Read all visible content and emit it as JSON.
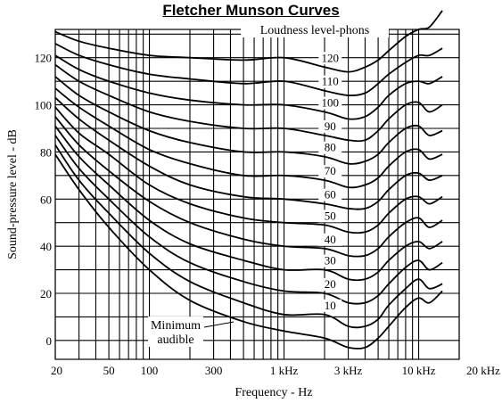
{
  "chart_data": {
    "type": "line",
    "title": "Fletcher Munson Curves",
    "xlabel": "Frequency - Hz",
    "ylabel": "Sound-pressure level - dB",
    "legend_title": "Loudness level-phons",
    "annotation": "Minimum audible",
    "xscale": "log",
    "xlim": [
      20,
      20000
    ],
    "ylim": [
      -8,
      132
    ],
    "grid": true,
    "x_ticks": [
      {
        "value": 20,
        "label": "20"
      },
      {
        "value": 50,
        "label": "50"
      },
      {
        "value": 100,
        "label": "100"
      },
      {
        "value": 300,
        "label": "300"
      },
      {
        "value": 1000,
        "label": "1 kHz"
      },
      {
        "value": 3000,
        "label": "3 kHz"
      },
      {
        "value": 10000,
        "label": "10 kHz"
      },
      {
        "value": 20000,
        "label": "20 kHz"
      }
    ],
    "y_ticks": [
      0,
      20,
      40,
      60,
      80,
      100,
      120
    ],
    "x_gridlines": [
      20,
      30,
      40,
      50,
      60,
      70,
      80,
      90,
      100,
      200,
      300,
      400,
      500,
      600,
      700,
      800,
      900,
      1000,
      2000,
      3000,
      4000,
      5000,
      6000,
      7000,
      8000,
      9000,
      10000,
      20000
    ],
    "y_gridlines": [
      0,
      10,
      20,
      30,
      40,
      50,
      60,
      70,
      80,
      90,
      100,
      110,
      120,
      130
    ],
    "x": [
      20,
      30,
      50,
      100,
      200,
      500,
      1000,
      2000,
      3000,
      4000,
      5000,
      6000,
      8000,
      10000,
      12000,
      15000
    ],
    "series": [
      {
        "name": "120",
        "values": [
          131,
          127,
          124,
          121,
          120,
          119,
          120,
          116,
          114,
          116,
          119,
          123,
          129,
          132,
          133,
          140
        ]
      },
      {
        "name": "110",
        "values": [
          126,
          121,
          117,
          113,
          111,
          109,
          110,
          106,
          104,
          105,
          109,
          113,
          118,
          121,
          121,
          124
        ]
      },
      {
        "name": "100",
        "values": [
          121,
          115,
          110,
          105,
          102,
          100,
          100,
          97,
          94,
          95,
          99,
          104,
          109,
          110,
          109,
          112
        ]
      },
      {
        "name": "90",
        "values": [
          117,
          110,
          104,
          97,
          93,
          90,
          90,
          87,
          85,
          85,
          89,
          94,
          100,
          101,
          97,
          100
        ]
      },
      {
        "name": "80",
        "values": [
          112,
          104,
          97,
          89,
          84,
          80,
          80,
          78,
          75,
          76,
          79,
          84,
          90,
          91,
          87,
          89
        ]
      },
      {
        "name": "70",
        "values": [
          107,
          99,
          91,
          81,
          75,
          70,
          70,
          68,
          65,
          66,
          69,
          74,
          80,
          81,
          77,
          79
        ]
      },
      {
        "name": "60",
        "values": [
          103,
          94,
          85,
          74,
          66,
          61,
          60,
          58,
          56,
          56,
          59,
          64,
          70,
          71,
          68,
          70
        ]
      },
      {
        "name": "50",
        "values": [
          99,
          88,
          79,
          66,
          58,
          52,
          50,
          49,
          46,
          46,
          49,
          54,
          60,
          61,
          58,
          61
        ]
      },
      {
        "name": "40",
        "values": [
          95,
          83,
          72,
          59,
          50,
          43,
          40,
          39,
          36,
          36,
          39,
          44,
          50,
          52,
          48,
          51
        ]
      },
      {
        "name": "30",
        "values": [
          91,
          78,
          66,
          51,
          41,
          34,
          30,
          30,
          26,
          26,
          29,
          34,
          40,
          42,
          39,
          42
        ]
      },
      {
        "name": "20",
        "values": [
          87,
          73,
          60,
          44,
          33,
          25,
          21,
          20,
          16,
          16,
          19,
          24,
          31,
          34,
          30,
          33
        ]
      },
      {
        "name": "10",
        "values": [
          83,
          68,
          54,
          37,
          25,
          16,
          11,
          11,
          6,
          6,
          9,
          15,
          22,
          26,
          22,
          24
        ]
      },
      {
        "name": "Minimum audible",
        "values": [
          79,
          64,
          48,
          30,
          17,
          8,
          4,
          1,
          -3,
          -3,
          1,
          6,
          14,
          18,
          16,
          21
        ]
      }
    ],
    "curve_labels": [
      "120",
      "110",
      "100",
      "90",
      "80",
      "70",
      "60",
      "50",
      "40",
      "30",
      "20",
      "10"
    ]
  }
}
